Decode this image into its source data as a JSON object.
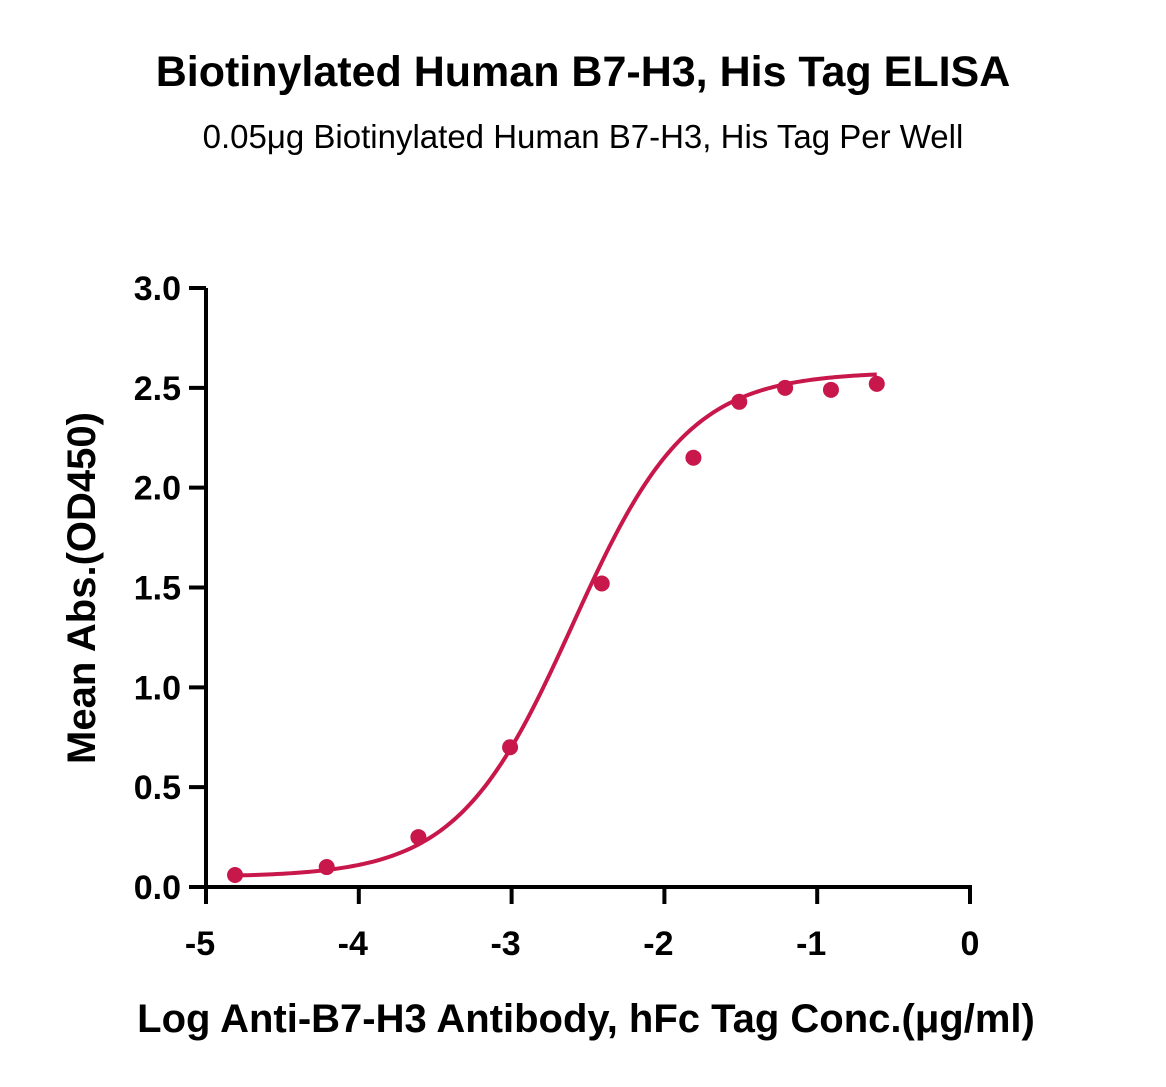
{
  "chart_data": {
    "type": "scatter",
    "title": "Biotinylated Human B7-H3, His Tag ELISA",
    "subtitle": "0.05μg Biotinylated Human B7-H3, His Tag Per Well",
    "xlabel": "Log Anti-B7-H3 Antibody, hFc Tag Conc.(μg/ml)",
    "ylabel": "Mean Abs.(OD450)",
    "xlim": [
      -5,
      0
    ],
    "ylim": [
      0,
      3.0
    ],
    "xticks": [
      "-5",
      "-4",
      "-3",
      "-2",
      "-1",
      "0"
    ],
    "yticks": [
      "0.0",
      "0.5",
      "1.0",
      "1.5",
      "2.0",
      "2.5",
      "3.0"
    ],
    "grid": false,
    "color": "#c8174a",
    "series": [
      {
        "x": [
          -4.81,
          -4.21,
          -3.61,
          -3.01,
          -2.41,
          -1.81,
          -1.51,
          -1.21,
          -0.91,
          -0.61
        ],
        "y": [
          0.06,
          0.1,
          0.25,
          0.7,
          1.52,
          2.15,
          2.43,
          2.5,
          2.49,
          2.52
        ],
        "fit": "sigmoidal"
      }
    ]
  }
}
